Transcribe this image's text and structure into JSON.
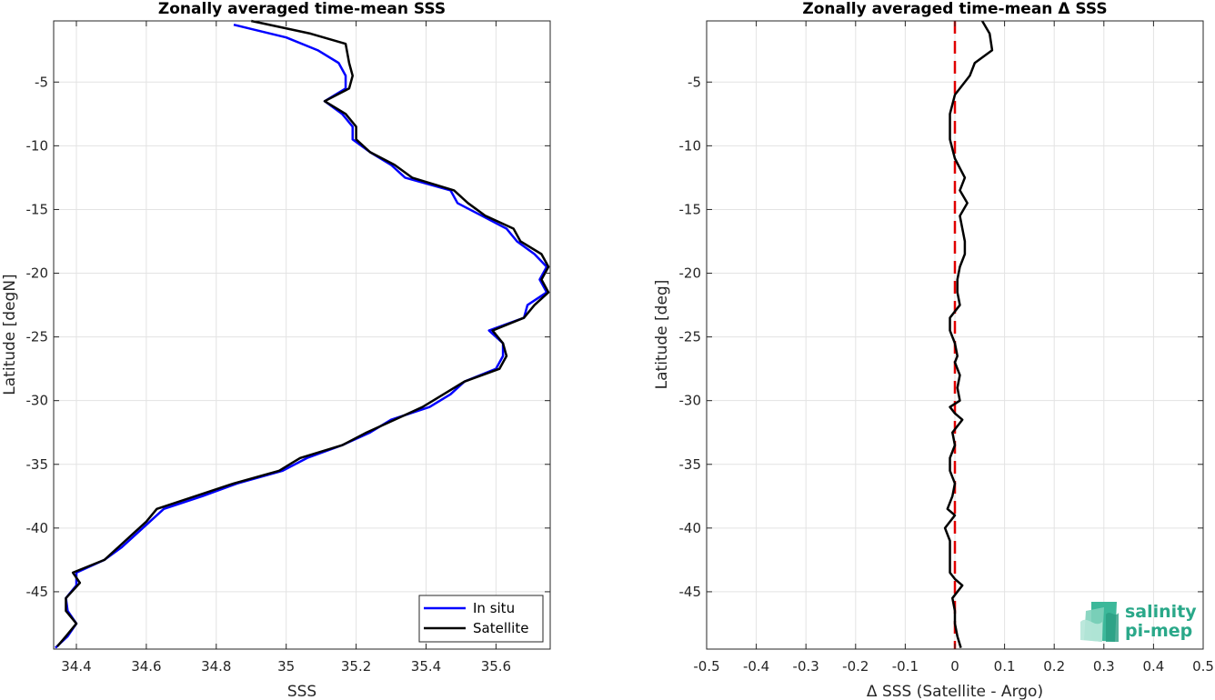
{
  "chart_data": [
    {
      "type": "line",
      "title": "Zonally averaged time-mean SSS",
      "xlabel": "SSS",
      "ylabel": "Latitude [degN]",
      "xlim": [
        34.335,
        35.755
      ],
      "ylim": [
        -49.5,
        -0.2
      ],
      "xticks": [
        34.4,
        34.6,
        34.8,
        35,
        35.2,
        35.4,
        35.6
      ],
      "yticks": [
        -5,
        -10,
        -15,
        -20,
        -25,
        -30,
        -35,
        -40,
        -45
      ],
      "grid": true,
      "legend_position": "bottom-right",
      "series": [
        {
          "name": "In situ",
          "color": "#0000ff",
          "points": [
            [
              34.85,
              -0.5
            ],
            [
              35.0,
              -1.5
            ],
            [
              35.09,
              -2.5
            ],
            [
              35.15,
              -3.5
            ],
            [
              35.17,
              -4.5
            ],
            [
              35.17,
              -5.5
            ],
            [
              35.11,
              -6.5
            ],
            [
              35.16,
              -7.5
            ],
            [
              35.19,
              -8.5
            ],
            [
              35.19,
              -9.5
            ],
            [
              35.24,
              -10.5
            ],
            [
              35.3,
              -11.5
            ],
            [
              35.34,
              -12.5
            ],
            [
              35.47,
              -13.5
            ],
            [
              35.49,
              -14.5
            ],
            [
              35.56,
              -15.5
            ],
            [
              35.63,
              -16.5
            ],
            [
              35.66,
              -17.5
            ],
            [
              35.71,
              -18.5
            ],
            [
              35.745,
              -19.5
            ],
            [
              35.725,
              -20.5
            ],
            [
              35.745,
              -21.5
            ],
            [
              35.69,
              -22.5
            ],
            [
              35.68,
              -23.5
            ],
            [
              35.58,
              -24.5
            ],
            [
              35.62,
              -25.5
            ],
            [
              35.62,
              -26.5
            ],
            [
              35.6,
              -27.5
            ],
            [
              35.51,
              -28.5
            ],
            [
              35.47,
              -29.5
            ],
            [
              35.41,
              -30.5
            ],
            [
              35.3,
              -31.5
            ],
            [
              35.24,
              -32.5
            ],
            [
              35.16,
              -33.5
            ],
            [
              35.06,
              -34.5
            ],
            [
              34.99,
              -35.5
            ],
            [
              34.86,
              -36.5
            ],
            [
              34.76,
              -37.5
            ],
            [
              34.65,
              -38.5
            ],
            [
              34.61,
              -39.5
            ],
            [
              34.57,
              -40.5
            ],
            [
              34.53,
              -41.5
            ],
            [
              34.48,
              -42.5
            ],
            [
              34.4,
              -43.5
            ],
            [
              34.4,
              -44.5
            ],
            [
              34.37,
              -45.5
            ],
            [
              34.375,
              -46.5
            ],
            [
              34.4,
              -47.5
            ],
            [
              34.375,
              -48.5
            ],
            [
              34.34,
              -49.4
            ]
          ]
        },
        {
          "name": "Satellite",
          "color": "#000000",
          "points": [
            [
              34.9,
              -0.2
            ],
            [
              35.07,
              -1.2
            ],
            [
              35.17,
              -2.0
            ],
            [
              35.18,
              -3.5
            ],
            [
              35.19,
              -4.5
            ],
            [
              35.18,
              -5.5
            ],
            [
              35.11,
              -6.5
            ],
            [
              35.17,
              -7.5
            ],
            [
              35.2,
              -8.5
            ],
            [
              35.2,
              -9.5
            ],
            [
              35.24,
              -10.5
            ],
            [
              35.31,
              -11.5
            ],
            [
              35.36,
              -12.5
            ],
            [
              35.48,
              -13.5
            ],
            [
              35.52,
              -14.5
            ],
            [
              35.57,
              -15.5
            ],
            [
              35.65,
              -16.5
            ],
            [
              35.67,
              -17.5
            ],
            [
              35.73,
              -18.5
            ],
            [
              35.75,
              -19.5
            ],
            [
              35.73,
              -20.5
            ],
            [
              35.75,
              -21.5
            ],
            [
              35.71,
              -22.5
            ],
            [
              35.68,
              -23.5
            ],
            [
              35.59,
              -24.5
            ],
            [
              35.62,
              -25.5
            ],
            [
              35.63,
              -26.5
            ],
            [
              35.61,
              -27.5
            ],
            [
              35.51,
              -28.5
            ],
            [
              35.45,
              -29.5
            ],
            [
              35.39,
              -30.5
            ],
            [
              35.31,
              -31.5
            ],
            [
              35.23,
              -32.5
            ],
            [
              35.16,
              -33.5
            ],
            [
              35.04,
              -34.5
            ],
            [
              34.98,
              -35.5
            ],
            [
              34.85,
              -36.5
            ],
            [
              34.74,
              -37.5
            ],
            [
              34.63,
              -38.5
            ],
            [
              34.6,
              -39.5
            ],
            [
              34.56,
              -40.5
            ],
            [
              34.52,
              -41.5
            ],
            [
              34.48,
              -42.5
            ],
            [
              34.39,
              -43.5
            ],
            [
              34.41,
              -44.3
            ],
            [
              34.37,
              -45.5
            ],
            [
              34.37,
              -46.5
            ],
            [
              34.4,
              -47.5
            ],
            [
              34.37,
              -48.5
            ],
            [
              34.345,
              -49.3
            ]
          ]
        }
      ]
    },
    {
      "type": "line",
      "title": "Zonally averaged time-mean Δ SSS",
      "xlabel": "Δ SSS (Satellite - Argo)",
      "ylabel": "Latitude [deg]",
      "xlim": [
        -0.5,
        0.5
      ],
      "ylim": [
        -49.5,
        -0.2
      ],
      "xticks": [
        -0.5,
        -0.4,
        -0.3,
        -0.2,
        -0.1,
        0,
        0.1,
        0.2,
        0.3,
        0.4,
        0.5
      ],
      "yticks": [
        -5,
        -10,
        -15,
        -20,
        -25,
        -30,
        -35,
        -40,
        -45
      ],
      "grid": true,
      "reference_line": {
        "x": 0,
        "color": "#e00000",
        "style": "dashed"
      },
      "series": [
        {
          "color": "#000000",
          "points": [
            [
              0.055,
              -0.2
            ],
            [
              0.07,
              -1.2
            ],
            [
              0.075,
              -2.5
            ],
            [
              0.04,
              -3.5
            ],
            [
              0.03,
              -4.5
            ],
            [
              0.0,
              -6.0
            ],
            [
              -0.01,
              -7.5
            ],
            [
              -0.01,
              -9.5
            ],
            [
              0.0,
              -11.0
            ],
            [
              0.02,
              -12.5
            ],
            [
              0.01,
              -13.5
            ],
            [
              0.025,
              -14.5
            ],
            [
              0.01,
              -15.5
            ],
            [
              0.015,
              -16.5
            ],
            [
              0.02,
              -17.5
            ],
            [
              0.02,
              -18.5
            ],
            [
              0.01,
              -19.5
            ],
            [
              0.005,
              -20.5
            ],
            [
              0.005,
              -21.5
            ],
            [
              0.01,
              -22.5
            ],
            [
              -0.01,
              -23.5
            ],
            [
              -0.01,
              -24.5
            ],
            [
              0.0,
              -25.5
            ],
            [
              0.005,
              -26.5
            ],
            [
              0.0,
              -27.0
            ],
            [
              0.01,
              -28.0
            ],
            [
              0.005,
              -29.0
            ],
            [
              0.01,
              -30.0
            ],
            [
              -0.01,
              -30.5
            ],
            [
              0.0,
              -31.0
            ],
            [
              0.015,
              -31.5
            ],
            [
              -0.005,
              -32.5
            ],
            [
              0.0,
              -33.5
            ],
            [
              -0.01,
              -34.5
            ],
            [
              -0.01,
              -35.5
            ],
            [
              0.0,
              -36.5
            ],
            [
              -0.005,
              -37.5
            ],
            [
              -0.015,
              -38.5
            ],
            [
              0.0,
              -39.0
            ],
            [
              -0.02,
              -40.0
            ],
            [
              -0.01,
              -41.0
            ],
            [
              -0.01,
              -42.5
            ],
            [
              -0.01,
              -43.5
            ],
            [
              0.0,
              -44.0
            ],
            [
              0.015,
              -44.5
            ],
            [
              -0.005,
              -45.5
            ],
            [
              0.0,
              -46.5
            ],
            [
              0.0,
              -47.5
            ],
            [
              0.005,
              -48.5
            ],
            [
              0.012,
              -49.4
            ]
          ]
        }
      ]
    }
  ],
  "logo": {
    "line1": "salinity",
    "line2": "pi-mep"
  }
}
